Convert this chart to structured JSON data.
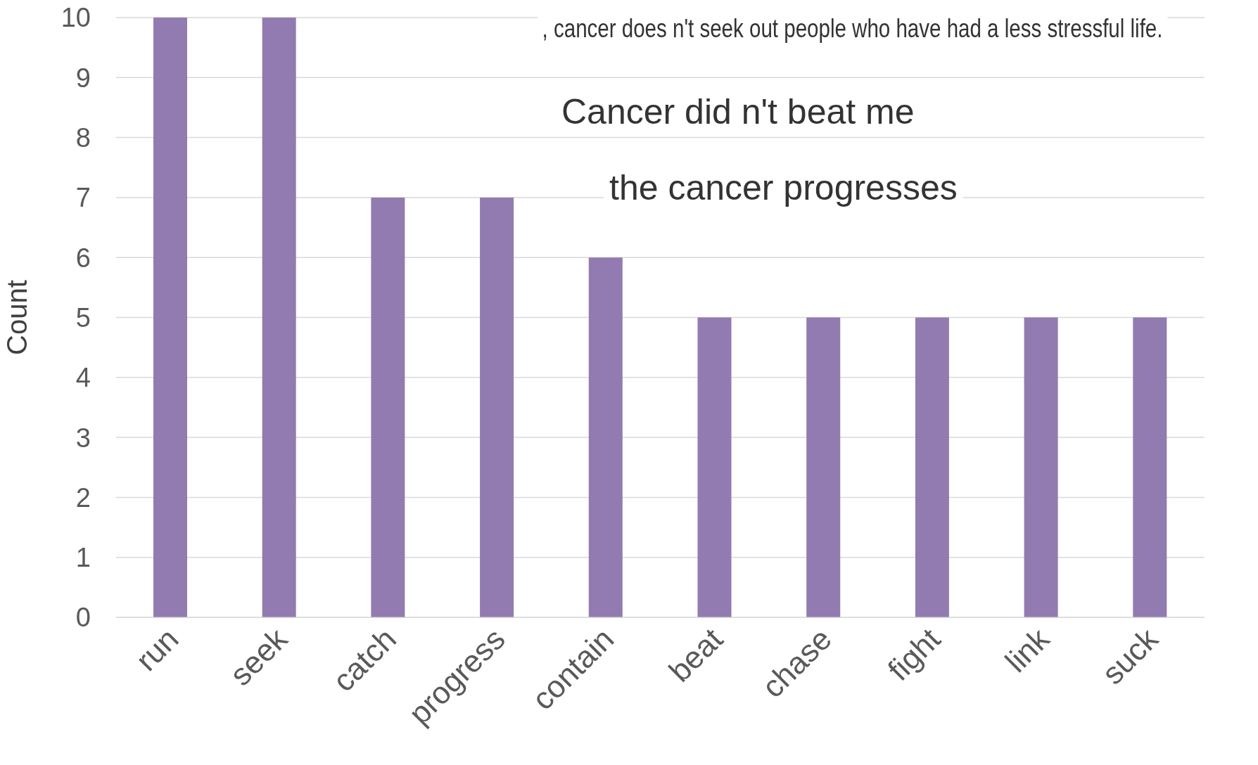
{
  "chart_data": {
    "type": "bar",
    "ylabel": "Count",
    "categories": [
      "run",
      "seek",
      "catch",
      "progress",
      "contain",
      "beat",
      "chase",
      "fight",
      "link",
      "suck"
    ],
    "values": [
      10,
      10,
      7,
      7,
      6,
      5,
      5,
      5,
      5,
      5
    ],
    "color": "#927bb0",
    "ylim": [
      0,
      10
    ],
    "yticks": [
      0,
      1,
      2,
      3,
      4,
      5,
      6,
      7,
      8,
      9,
      10
    ],
    "grid": "y",
    "annotations": [
      ", cancer does n't seek out people who have had a less stressful life.",
      "Cancer did n't beat me",
      "the cancer progresses"
    ]
  }
}
